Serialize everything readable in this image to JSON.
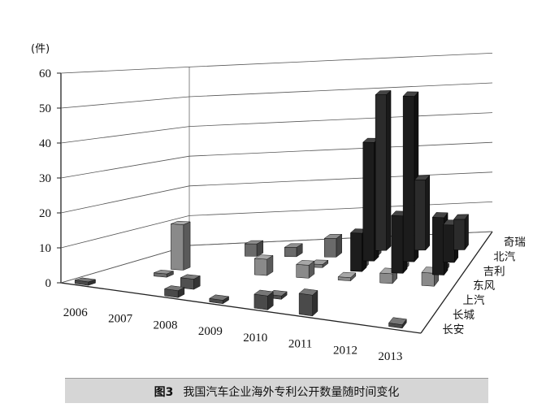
{
  "chart_data": {
    "type": "bar",
    "subtype": "3d-clustered-bar",
    "y_unit": "(件)",
    "y_ticks": [
      "0",
      "10",
      "20",
      "30",
      "40",
      "50",
      "60"
    ],
    "ylim": [
      0,
      60
    ],
    "categories": [
      "2006",
      "2007",
      "2008",
      "2009",
      "2010",
      "2011",
      "2012",
      "2013"
    ],
    "series": [
      {
        "name": "长安",
        "values": [
          1,
          null,
          2,
          1,
          4,
          6,
          null,
          1
        ],
        "color": "#4a4a4a"
      },
      {
        "name": "长城",
        "values": [
          null,
          null,
          3,
          null,
          1,
          null,
          null,
          null
        ],
        "color": "#505050"
      },
      {
        "name": "上汽",
        "values": [
          null,
          1,
          null,
          null,
          null,
          null,
          null,
          null
        ],
        "color": "#6e6e6e"
      },
      {
        "name": "东风",
        "values": [
          null,
          14,
          null,
          5,
          4,
          1,
          3,
          4
        ],
        "color": "#8a8a8a"
      },
      {
        "name": "吉利",
        "values": [
          null,
          null,
          null,
          null,
          1,
          2,
          1,
          1
        ],
        "color": "#7c7c7c"
      },
      {
        "name": "北汽",
        "values": [
          null,
          null,
          4,
          3,
          6,
          7,
          null,
          null
        ],
        "color": "#6a6a6a"
      },
      {
        "name": "奇瑞",
        "values": [
          null,
          null,
          null,
          null,
          null,
          null,
          null,
          null
        ],
        "color": "#555555"
      },
      {
        "name": "",
        "values": [
          1,
          1,
          5,
          1,
          2,
          null,
          14,
          null
        ],
        "color": "#262626"
      },
      {
        "name": "",
        "values": [
          null,
          null,
          null,
          null,
          null,
          null,
          null,
          null
        ],
        "color": "#1e1e1e"
      },
      {
        "name": "",
        "values": [
          null,
          null,
          null,
          null,
          null,
          20,
          13,
          10
        ],
        "color": "#1a1a1a"
      }
    ],
    "depth_labels": [
      "长安",
      "长城",
      "上汽",
      "东风",
      "吉利",
      "北汽",
      "奇瑞"
    ],
    "tall_bars": [
      {
        "category": "2011",
        "values": [
          12,
          38,
          51
        ]
      },
      {
        "category": "2012",
        "values": [
          18,
          53,
          23
        ]
      },
      {
        "category": "2013",
        "values": [
          18,
          12,
          10
        ]
      }
    ]
  },
  "caption": {
    "figure_label": "图3",
    "text": "我国汽车企业海外专利公开数量随时间变化"
  }
}
